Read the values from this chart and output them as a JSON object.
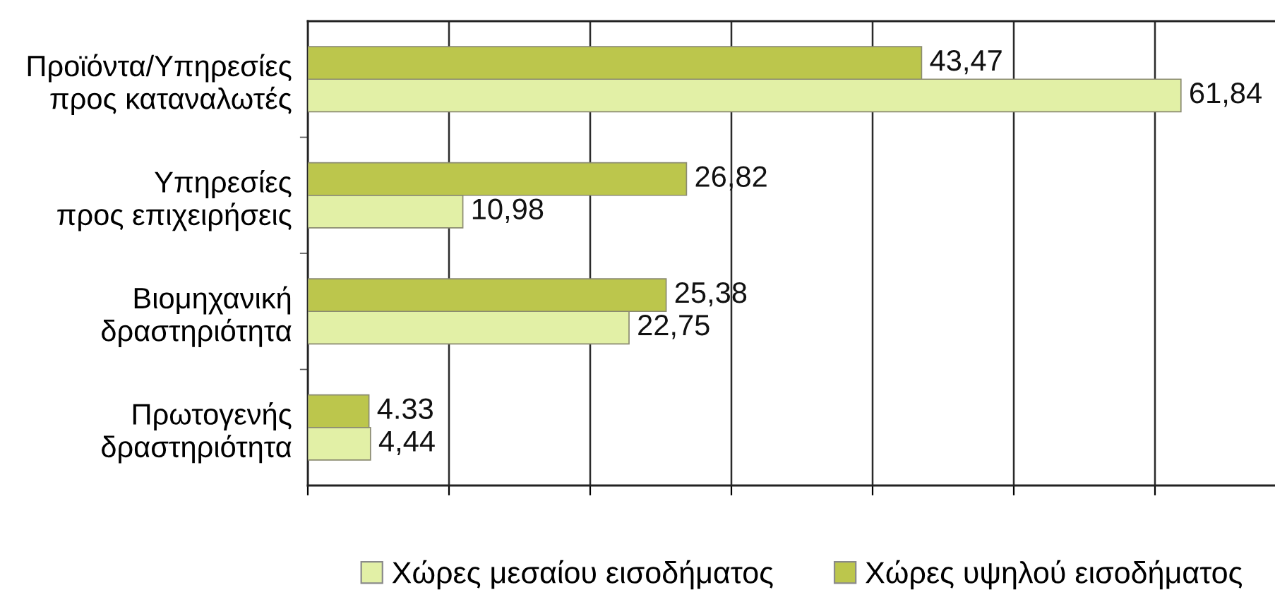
{
  "chart_data": {
    "type": "bar",
    "orientation": "horizontal",
    "categories": [
      "Προϊόντα/Υπηρεσίες\nπρος καταναλωτές",
      "Υπηρεσίες\nπρος επιχειρήσεις",
      "Βιομηχανική\nδραστηριότητα",
      "Πρωτογενής\nδραστηριότητα"
    ],
    "series": [
      {
        "name": "Χώρες μεσαίου εισοδήματος",
        "color": "#e2f0a6",
        "values": [
          61.84,
          10.98,
          22.75,
          4.44
        ],
        "value_labels": [
          "61,84",
          "10,98",
          "22,75",
          "4,44"
        ]
      },
      {
        "name": "Χώρες υψηλού εισοδήματος",
        "color": "#bcc64c",
        "values": [
          43.47,
          26.82,
          25.38,
          4.33
        ],
        "value_labels": [
          "43,47",
          "26,82",
          "25,38",
          "4.33"
        ]
      }
    ],
    "xlim": [
      0,
      68.5
    ],
    "xticks": [
      {
        "value": 0,
        "label": null
      },
      {
        "value": 10,
        "label": null
      },
      {
        "value": 20,
        "label": null
      },
      {
        "value": 30,
        "label": null
      },
      {
        "value": 40,
        "label": null
      },
      {
        "value": 50,
        "label": null
      },
      {
        "value": 60,
        "label": null
      }
    ],
    "grid": "x",
    "legend": "bottom",
    "tick_labels": "y"
  }
}
